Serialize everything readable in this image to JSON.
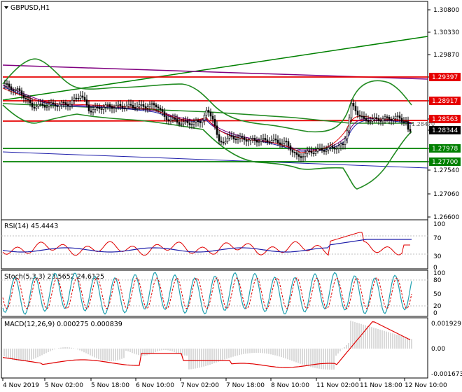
{
  "symbol_title": "GBPUSD,H1",
  "price_axis": [
    "1.30800",
    "1.30330",
    "1.29870",
    "1.29397",
    "1.28917",
    "1.28563",
    "1.28344",
    "1.27978",
    "1.27700",
    "1.27540",
    "1.27060",
    "1.26600"
  ],
  "level_lines": [
    {
      "label": "1.29397",
      "color": "#e60000"
    },
    {
      "label": "1.28917",
      "color": "#e60000"
    },
    {
      "label": "1.28563",
      "color": "#e60000"
    },
    {
      "label": "1.27978",
      "color": "#008000"
    },
    {
      "label": "1.27700",
      "color": "#008000"
    }
  ],
  "current_price": "1.28344",
  "hidden_price": "1.28470",
  "rsi": {
    "title": "RSI(14) 45.4443",
    "levels": [
      "100",
      "70",
      "30",
      "0"
    ]
  },
  "stoch": {
    "title": "Stoch(5,3,3) 23.5652 24.6125",
    "levels": [
      "100",
      "80",
      "50",
      "20",
      "0"
    ]
  },
  "macd": {
    "title": "MACD(12,26,9) 0.000275 0.000839",
    "levels": [
      "0.001929",
      "0.00",
      "-0.001673"
    ]
  },
  "time_axis": [
    "4 Nov 2019",
    "5 Nov 02:00",
    "5 Nov 18:00",
    "6 Nov 10:00",
    "7 Nov 02:00",
    "7 Nov 18:00",
    "8 Nov 10:00",
    "11 Nov 02:00",
    "11 Nov 18:00",
    "12 Nov 10:00"
  ],
  "colors": {
    "support": "#008000",
    "resistance": "#e60000",
    "bollinger": "#228b22",
    "trend_purple": "#800080",
    "trend_blue": "#0000b4",
    "rsi_line": "#e00000",
    "rsi_signal": "#1e1eaa",
    "stoch_main": "#20a0b0",
    "stoch_signal": "#e00000",
    "macd_hist": "#b4b4b4",
    "macd_signal": "#e00000",
    "label_bg_red": "#e60000",
    "label_bg_green": "#008000",
    "label_bg_black": "#000000"
  }
}
